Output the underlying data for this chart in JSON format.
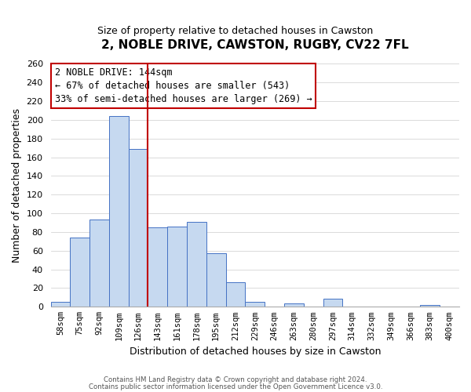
{
  "title": "2, NOBLE DRIVE, CAWSTON, RUGBY, CV22 7FL",
  "subtitle": "Size of property relative to detached houses in Cawston",
  "xlabel": "Distribution of detached houses by size in Cawston",
  "ylabel": "Number of detached properties",
  "bin_labels": [
    "58sqm",
    "75sqm",
    "92sqm",
    "109sqm",
    "126sqm",
    "143sqm",
    "161sqm",
    "178sqm",
    "195sqm",
    "212sqm",
    "229sqm",
    "246sqm",
    "263sqm",
    "280sqm",
    "297sqm",
    "314sqm",
    "332sqm",
    "349sqm",
    "366sqm",
    "383sqm",
    "400sqm"
  ],
  "bar_values": [
    5,
    74,
    93,
    204,
    169,
    85,
    86,
    91,
    57,
    26,
    5,
    0,
    4,
    0,
    9,
    0,
    0,
    0,
    0,
    2,
    0
  ],
  "bar_color": "#c6d9f0",
  "bar_edge_color": "#4472c4",
  "vline_color": "#c00000",
  "annotation_title": "2 NOBLE DRIVE: 144sqm",
  "annotation_line1": "← 67% of detached houses are smaller (543)",
  "annotation_line2": "33% of semi-detached houses are larger (269) →",
  "annotation_box_color": "#c00000",
  "ylim": [
    0,
    260
  ],
  "yticks": [
    0,
    20,
    40,
    60,
    80,
    100,
    120,
    140,
    160,
    180,
    200,
    220,
    240,
    260
  ],
  "footer1": "Contains HM Land Registry data © Crown copyright and database right 2024.",
  "footer2": "Contains public sector information licensed under the Open Government Licence v3.0.",
  "bg_color": "#ffffff",
  "grid_color": "#cccccc",
  "title_fontsize": 11,
  "subtitle_fontsize": 9,
  "ylabel_fontsize": 9,
  "xlabel_fontsize": 9,
  "tick_fontsize": 8,
  "annot_fontsize": 8.5
}
